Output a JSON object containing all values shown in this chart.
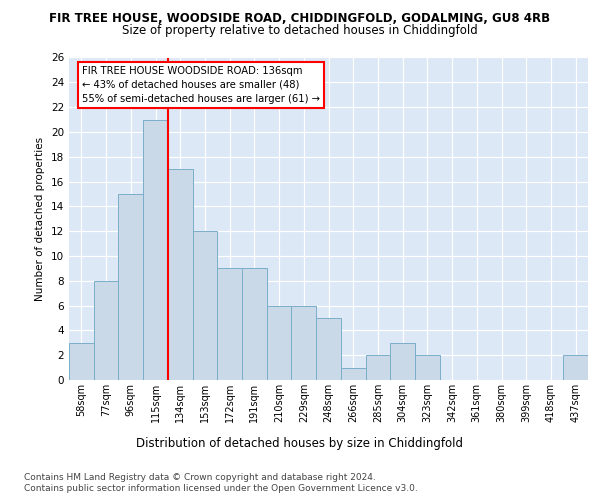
{
  "title1": "FIR TREE HOUSE, WOODSIDE ROAD, CHIDDINGFOLD, GODALMING, GU8 4RB",
  "title2": "Size of property relative to detached houses in Chiddingfold",
  "xlabel": "Distribution of detached houses by size in Chiddingfold",
  "ylabel": "Number of detached properties",
  "categories": [
    "58sqm",
    "77sqm",
    "96sqm",
    "115sqm",
    "134sqm",
    "153sqm",
    "172sqm",
    "191sqm",
    "210sqm",
    "229sqm",
    "248sqm",
    "266sqm",
    "285sqm",
    "304sqm",
    "323sqm",
    "342sqm",
    "361sqm",
    "380sqm",
    "399sqm",
    "418sqm",
    "437sqm"
  ],
  "values": [
    3,
    8,
    15,
    21,
    17,
    12,
    9,
    9,
    6,
    6,
    5,
    1,
    2,
    3,
    2,
    0,
    0,
    0,
    0,
    0,
    2
  ],
  "bar_color": "#c9d9e8",
  "bar_edge_color": "#7baec9",
  "redline_x": 3.5,
  "annotation_line1": "FIR TREE HOUSE WOODSIDE ROAD: 136sqm",
  "annotation_line2": "← 43% of detached houses are smaller (48)",
  "annotation_line3": "55% of semi-detached houses are larger (61) →",
  "ylim": [
    0,
    26
  ],
  "yticks": [
    0,
    2,
    4,
    6,
    8,
    10,
    12,
    14,
    16,
    18,
    20,
    22,
    24,
    26
  ],
  "footer1": "Contains HM Land Registry data © Crown copyright and database right 2024.",
  "footer2": "Contains public sector information licensed under the Open Government Licence v3.0.",
  "fig_bg_color": "#ffffff",
  "plot_bg_color": "#dce8f5"
}
